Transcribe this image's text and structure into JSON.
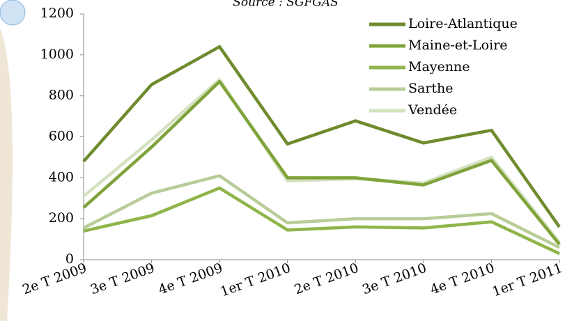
{
  "chart_data": {
    "type": "line",
    "subtitle": "Source : SGFGAS",
    "categories": [
      "2e T 2009",
      "3e T 2009",
      "4e T 2009",
      "1er T 2010",
      "2e T 2010",
      "3e T 2010",
      "4e T 2010",
      "1er T 2011"
    ],
    "series": [
      {
        "name": "Loire-Atlantique",
        "color": "#6e8b2d",
        "values": [
          480,
          855,
          1040,
          565,
          678,
          570,
          632,
          160
        ]
      },
      {
        "name": "Maine-et-Loire",
        "color": "#7fa33a",
        "values": [
          255,
          550,
          870,
          400,
          400,
          365,
          485,
          75
        ]
      },
      {
        "name": "Mayenne",
        "color": "#8fb54a",
        "values": [
          140,
          215,
          350,
          145,
          160,
          155,
          185,
          30
        ]
      },
      {
        "name": "Sarthe",
        "color": "#b8cc98",
        "values": [
          155,
          325,
          410,
          180,
          200,
          200,
          225,
          60
        ]
      },
      {
        "name": "Vendée",
        "color": "#d4e2c0",
        "values": [
          310,
          585,
          880,
          385,
          395,
          375,
          500,
          85
        ]
      }
    ],
    "ylim": [
      0,
      1200
    ],
    "yticks": [
      0,
      200,
      400,
      600,
      800,
      1000,
      1200
    ],
    "legend": "upper right"
  }
}
